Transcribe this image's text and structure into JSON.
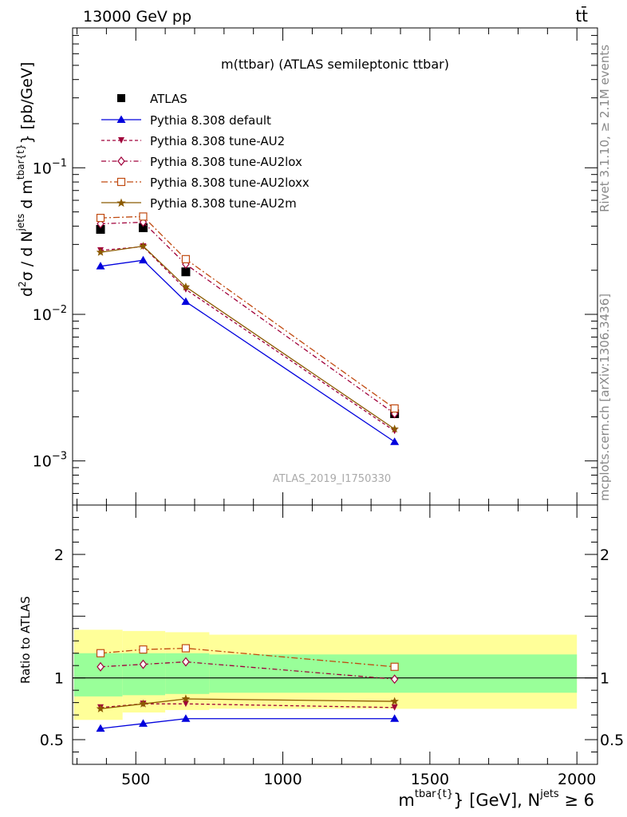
{
  "header": {
    "energy_label": "13000 GeV pp",
    "process_label": "tt̄"
  },
  "side": {
    "rivet_label": "Rivet 3.1.10, ≥ 2.1M events",
    "source_label": "mcplots.cern.ch [arXiv:1306.3436]"
  },
  "chart_data": [
    {
      "type": "line",
      "title": "m(ttbar) (ATLAS semileptonic ttbar)",
      "watermark": "ATLAS_2019_I1750330",
      "ylabel": "d²σ  /  d N^{jets} d m^{tbar{t}} [pb/GeV]",
      "ylabel_parts": {
        "a": "d",
        "b": "2",
        "c": "σ  /  d N",
        "d": "jets",
        "e": " d m",
        "f": "tbar{t}",
        "g": "} [pb/GeV]"
      },
      "yscale": "log",
      "ylim": [
        0.0005,
        0.9
      ],
      "xlim": [
        285,
        2070
      ],
      "y_ticks": [
        {
          "value": 0.1,
          "base": "10",
          "exp": "−1"
        },
        {
          "value": 0.01,
          "base": "10",
          "exp": "−2"
        },
        {
          "value": 0.001,
          "base": "10",
          "exp": "−3"
        }
      ],
      "x": [
        380,
        525,
        670,
        1380
      ],
      "series": [
        {
          "name": "ATLAS",
          "color": "#000000",
          "marker": "square-filled",
          "line": "none",
          "values": [
            0.038,
            0.039,
            0.0195,
            0.0021
          ]
        },
        {
          "name": "Pythia 8.308 default",
          "color": "#0000dd",
          "marker": "triangle-up",
          "line": "solid",
          "values": [
            0.0213,
            0.0234,
            0.0122,
            0.00135
          ]
        },
        {
          "name": "Pythia 8.308 tune-AU2",
          "color": "#a0003a",
          "marker": "triangle-down",
          "line": "dashed",
          "values": [
            0.0273,
            0.029,
            0.0148,
            0.0016
          ]
        },
        {
          "name": "Pythia 8.308 tune-AU2lox",
          "color": "#a0003a",
          "marker": "diamond-open",
          "line": "dashdot",
          "values": [
            0.0415,
            0.0425,
            0.022,
            0.0021
          ]
        },
        {
          "name": "Pythia 8.308 tune-AU2loxx",
          "color": "#c04a10",
          "marker": "square-open",
          "line": "dashdot",
          "values": [
            0.0455,
            0.0465,
            0.0238,
            0.00228
          ]
        },
        {
          "name": "Pythia 8.308 tune-AU2m",
          "color": "#8b5a00",
          "marker": "star",
          "line": "solid",
          "values": [
            0.0265,
            0.0292,
            0.0154,
            0.00165
          ]
        }
      ],
      "legend": "top-left"
    },
    {
      "type": "line",
      "ylabel": "Ratio to ATLAS",
      "xlabel_parts": {
        "a": "m",
        "b": "tbar{t}",
        "c": "} [GeV], N",
        "d": "jets",
        "e": " ≥ 6"
      },
      "ylim": [
        0.3,
        2.4
      ],
      "xlim": [
        285,
        2070
      ],
      "y_ticks": [
        0.5,
        1,
        2
      ],
      "x_ticks": [
        500,
        1000,
        1500,
        2000
      ],
      "bands": [
        {
          "x_from": 290,
          "x_to": 455,
          "green": [
            0.85,
            1.2
          ],
          "yellow": [
            0.66,
            1.39
          ]
        },
        {
          "x_from": 455,
          "x_to": 600,
          "green": [
            0.86,
            1.2
          ],
          "yellow": [
            0.72,
            1.38
          ]
        },
        {
          "x_from": 600,
          "x_to": 750,
          "green": [
            0.87,
            1.2
          ],
          "yellow": [
            0.74,
            1.37
          ]
        },
        {
          "x_from": 750,
          "x_to": 2000,
          "green": [
            0.88,
            1.19
          ],
          "yellow": [
            0.75,
            1.35
          ]
        }
      ],
      "x": [
        380,
        525,
        670,
        1380
      ],
      "series": [
        {
          "name": "Pythia 8.308 default",
          "color": "#0000dd",
          "marker": "triangle-up",
          "line": "solid",
          "values": [
            0.59,
            0.63,
            0.67,
            0.67
          ]
        },
        {
          "name": "Pythia 8.308 tune-AU2",
          "color": "#a0003a",
          "marker": "triangle-down",
          "line": "dashed",
          "values": [
            0.76,
            0.79,
            0.79,
            0.76
          ]
        },
        {
          "name": "Pythia 8.308 tune-AU2lox",
          "color": "#a0003a",
          "marker": "diamond-open",
          "line": "dashdot",
          "values": [
            1.09,
            1.11,
            1.13,
            0.99
          ]
        },
        {
          "name": "Pythia 8.308 tune-AU2loxx",
          "color": "#c04a10",
          "marker": "square-open",
          "line": "dashdot",
          "values": [
            1.2,
            1.23,
            1.24,
            1.09
          ]
        },
        {
          "name": "Pythia 8.308 tune-AU2m",
          "color": "#8b5a00",
          "marker": "star",
          "line": "solid",
          "values": [
            0.75,
            0.79,
            0.83,
            0.81
          ]
        }
      ]
    }
  ]
}
